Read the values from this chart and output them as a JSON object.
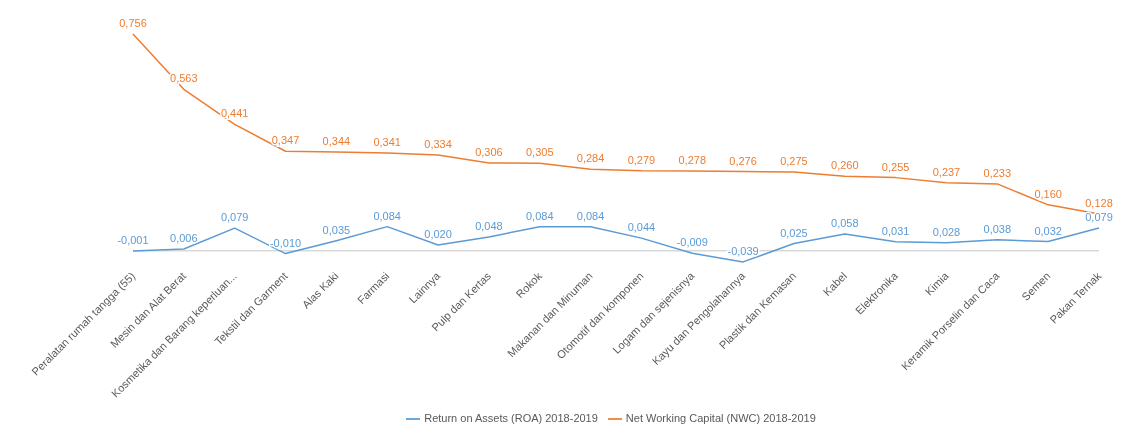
{
  "chart_data": {
    "type": "line",
    "categories": [
      "Peralatan rumah tangga (55)",
      "Mesin dan Alat Berat",
      "Kosmetika dan Barang keperluan...",
      "Tekstil dan Garment",
      "Alas Kaki",
      "Farmasi",
      "Lainnya",
      "Pulp dan Kertas",
      "Rokok",
      "Makanan dan Minuman",
      "Otomotif dan komponen",
      "Logam dan sejenisnya",
      "Kayu dan Pengolahannya",
      "Plastik dan Kemasan",
      "Kabel",
      "Elektronika",
      "Kimia",
      "Keramik Porselin dan Caca",
      "Semen",
      "Pakan Ternak"
    ],
    "series": [
      {
        "name": "Return on Assets (ROA) 2018-2019",
        "color": "#5b9bd5",
        "values": [
          -0.001,
          0.006,
          0.079,
          -0.01,
          0.035,
          0.084,
          0.02,
          0.048,
          0.084,
          0.084,
          0.044,
          -0.009,
          -0.039,
          0.025,
          0.058,
          0.031,
          0.028,
          0.038,
          0.032,
          0.079
        ],
        "value_labels": [
          "-0,001",
          "0,006",
          "0,079",
          "-0,010",
          "0,035",
          "0,084",
          "0,020",
          "0,048",
          "0,084",
          "0,084",
          "0,044",
          "-0,009",
          "-0,039",
          "0,025",
          "0,058",
          "0,031",
          "0,028",
          "0,038",
          "0,032",
          "0,079"
        ]
      },
      {
        "name": "Net Working Capital (NWC) 2018-2019",
        "color": "#ed7d31",
        "values": [
          0.756,
          0.563,
          0.441,
          0.347,
          0.344,
          0.341,
          0.334,
          0.306,
          0.305,
          0.284,
          0.279,
          0.278,
          0.276,
          0.275,
          0.26,
          0.255,
          0.237,
          0.233,
          0.16,
          0.128
        ],
        "value_labels": [
          "0,756",
          "0,563",
          "0,441",
          "0,347",
          "0,344",
          "0,341",
          "0,334",
          "0,306",
          "0,305",
          "0,284",
          "0,279",
          "0,278",
          "0,276",
          "0,275",
          "0,260",
          "0,255",
          "0,237",
          "0,233",
          "0,160",
          "0,128"
        ]
      }
    ],
    "legend": "bottom",
    "marker": "none",
    "line_style": "solid"
  }
}
